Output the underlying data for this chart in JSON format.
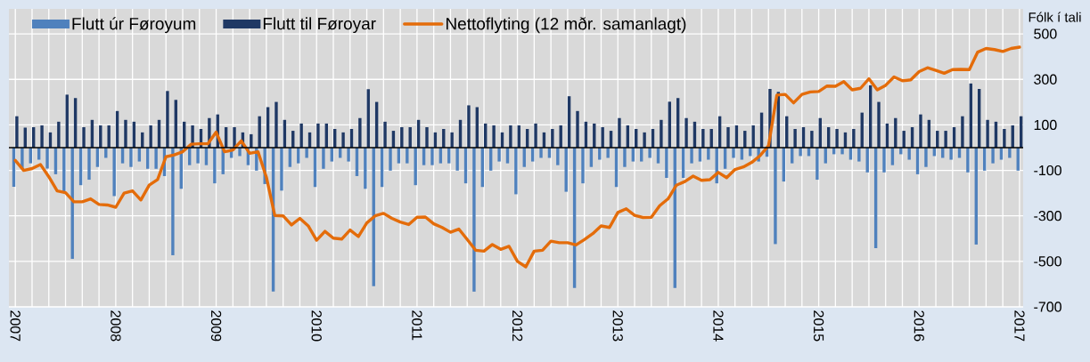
{
  "chart_data": {
    "type": "bar",
    "ylabel": "Fólk í tali",
    "x": [
      "2007-01",
      "2007-02",
      "2007-03",
      "2007-04",
      "2007-05",
      "2007-06",
      "2007-07",
      "2007-08",
      "2007-09",
      "2007-10",
      "2007-11",
      "2007-12",
      "2008-01",
      "2008-02",
      "2008-03",
      "2008-04",
      "2008-05",
      "2008-06",
      "2008-07",
      "2008-08",
      "2008-09",
      "2008-10",
      "2008-11",
      "2008-12",
      "2009-01",
      "2009-02",
      "2009-03",
      "2009-04",
      "2009-05",
      "2009-06",
      "2009-07",
      "2009-08",
      "2009-09",
      "2009-10",
      "2009-11",
      "2009-12",
      "2010-01",
      "2010-02",
      "2010-03",
      "2010-04",
      "2010-05",
      "2010-06",
      "2010-07",
      "2010-08",
      "2010-09",
      "2010-10",
      "2010-11",
      "2010-12",
      "2011-01",
      "2011-02",
      "2011-03",
      "2011-04",
      "2011-05",
      "2011-06",
      "2011-07",
      "2011-08",
      "2011-09",
      "2011-10",
      "2011-11",
      "2011-12",
      "2012-01",
      "2012-02",
      "2012-03",
      "2012-04",
      "2012-05",
      "2012-06",
      "2012-07",
      "2012-08",
      "2012-09",
      "2012-10",
      "2012-11",
      "2012-12",
      "2013-01",
      "2013-02",
      "2013-03",
      "2013-04",
      "2013-05",
      "2013-06",
      "2013-07",
      "2013-08",
      "2013-09",
      "2013-10",
      "2013-11",
      "2013-12",
      "2014-01",
      "2014-02",
      "2014-03",
      "2014-04",
      "2014-05",
      "2014-06",
      "2014-07",
      "2014-08",
      "2014-09",
      "2014-10",
      "2014-11",
      "2014-12",
      "2015-01",
      "2015-02",
      "2015-03",
      "2015-04",
      "2015-05",
      "2015-06",
      "2015-07",
      "2015-08",
      "2015-09",
      "2015-10",
      "2015-11",
      "2015-12",
      "2016-01",
      "2016-02",
      "2016-03",
      "2016-04",
      "2016-05",
      "2016-06",
      "2016-07",
      "2016-08",
      "2016-09",
      "2016-10",
      "2016-11",
      "2016-12",
      "2017-01"
    ],
    "series": [
      {
        "name": "Flutt úr Føroyum",
        "color": "#4f81bd",
        "values": [
          -172,
          -93,
          -69,
          -53,
          -92,
          -117,
          -192,
          -489,
          -165,
          -141,
          -85,
          -45,
          -213,
          -69,
          -85,
          -61,
          -93,
          -93,
          -125,
          -473,
          -181,
          -77,
          -69,
          -77,
          -157,
          -117,
          -45,
          -37,
          -77,
          -101,
          -160,
          -633,
          -189,
          -85,
          -69,
          -45,
          -173,
          -93,
          -61,
          -45,
          -61,
          -125,
          -181,
          -609,
          -173,
          -101,
          -69,
          -69,
          -165,
          -77,
          -77,
          -69,
          -69,
          -101,
          -157,
          -633,
          -173,
          -101,
          -61,
          -69,
          -205,
          -85,
          -61,
          -45,
          -45,
          -77,
          -194,
          -617,
          -157,
          -85,
          -53,
          -45,
          -173,
          -85,
          -61,
          -61,
          -45,
          -69,
          -133,
          -617,
          -133,
          -69,
          -61,
          -53,
          -157,
          -93,
          -45,
          -53,
          -37,
          -61,
          -40,
          -424,
          -149,
          -69,
          -37,
          -37,
          -141,
          -69,
          -29,
          -29,
          -53,
          -61,
          -109,
          -442,
          -109,
          -77,
          -29,
          -53,
          -117,
          -85,
          -37,
          -45,
          -53,
          -45,
          -109,
          -426,
          -101,
          -69,
          -53,
          -45,
          -101
        ]
      },
      {
        "name": "Flutt til Føroyar",
        "color": "#1f3864",
        "values": [
          138,
          88,
          90,
          98,
          67,
          114,
          233,
          218,
          90,
          122,
          98,
          98,
          161,
          122,
          114,
          67,
          98,
          122,
          249,
          210,
          114,
          98,
          82,
          130,
          146,
          90,
          90,
          67,
          59,
          138,
          178,
          201,
          122,
          74,
          106,
          67,
          106,
          106,
          82,
          67,
          82,
          130,
          257,
          201,
          114,
          74,
          90,
          90,
          122,
          90,
          67,
          82,
          67,
          122,
          186,
          178,
          106,
          98,
          67,
          98,
          98,
          82,
          106,
          67,
          82,
          98,
          226,
          161,
          114,
          106,
          90,
          74,
          130,
          98,
          82,
          67,
          82,
          122,
          202,
          218,
          130,
          114,
          82,
          82,
          138,
          90,
          98,
          74,
          98,
          154,
          258,
          245,
          138,
          82,
          90,
          74,
          130,
          90,
          82,
          67,
          82,
          154,
          274,
          201,
          106,
          130,
          74,
          90,
          146,
          122,
          74,
          74,
          90,
          138,
          282,
          258,
          122,
          114,
          82,
          98,
          138
        ]
      },
      {
        "name": "Nettoflyting (12 mðr. samanlagt)",
        "type": "line",
        "color": "#e46c0a",
        "values": [
          -56,
          -100,
          -92,
          -74,
          -128,
          -190,
          -198,
          -238,
          -238,
          -225,
          -250,
          -252,
          -262,
          -200,
          -190,
          -230,
          -165,
          -140,
          -40,
          -32,
          -18,
          15,
          17,
          17,
          68,
          -18,
          -10,
          30,
          -25,
          -18,
          -130,
          -298,
          -300,
          -340,
          -311,
          -344,
          -407,
          -368,
          -398,
          -402,
          -362,
          -391,
          -331,
          -300,
          -289,
          -311,
          -327,
          -338,
          -306,
          -305,
          -335,
          -351,
          -372,
          -358,
          -404,
          -451,
          -455,
          -426,
          -447,
          -434,
          -500,
          -524,
          -455,
          -451,
          -411,
          -418,
          -418,
          -428,
          -404,
          -378,
          -344,
          -351,
          -285,
          -269,
          -298,
          -307,
          -306,
          -255,
          -225,
          -165,
          -149,
          -125,
          -144,
          -141,
          -109,
          -132,
          -96,
          -85,
          -65,
          -35,
          8,
          231,
          234,
          197,
          234,
          245,
          247,
          271,
          270,
          290,
          254,
          261,
          303,
          254,
          274,
          311,
          294,
          298,
          334,
          351,
          340,
          327,
          343,
          344,
          343,
          420,
          436,
          431,
          423,
          436,
          442
        ]
      }
    ],
    "xlim": [
      "2006-12-08",
      "2017-01-14"
    ],
    "xticks": [
      "2007",
      {
        "value": "2007-03",
        "label": null
      },
      {
        "value": "2007-05",
        "label": null
      },
      {
        "value": "2007-07",
        "label": null
      },
      {
        "value": "2007-09",
        "label": null
      },
      {
        "value": "2007-11",
        "label": null
      },
      "2008",
      {
        "value": "2008-03",
        "label": null
      },
      {
        "value": "2008-05",
        "label": null
      },
      {
        "value": "2008-07",
        "label": null
      },
      {
        "value": "2008-09",
        "label": null
      },
      {
        "value": "2008-11",
        "label": null
      },
      "2009",
      {
        "value": "2009-03",
        "label": null
      },
      {
        "value": "2009-05",
        "label": null
      },
      {
        "value": "2009-07",
        "label": null
      },
      {
        "value": "2009-09",
        "label": null
      },
      {
        "value": "2009-11",
        "label": null
      },
      "2010",
      {
        "value": "2010-03",
        "label": null
      },
      {
        "value": "2010-05",
        "label": null
      },
      {
        "value": "2010-07",
        "label": null
      },
      {
        "value": "2010-09",
        "label": null
      },
      {
        "value": "2010-11",
        "label": null
      },
      "2011",
      {
        "value": "2011-03",
        "label": null
      },
      {
        "value": "2011-05",
        "label": null
      },
      {
        "value": "2011-07",
        "label": null
      },
      {
        "value": "2011-09",
        "label": null
      },
      {
        "value": "2011-11",
        "label": null
      },
      "2012",
      {
        "value": "2012-03",
        "label": null
      },
      {
        "value": "2012-05",
        "label": null
      },
      {
        "value": "2012-07",
        "label": null
      },
      {
        "value": "2012-09",
        "label": null
      },
      {
        "value": "2012-11",
        "label": null
      },
      "2013",
      {
        "value": "2013-03",
        "label": null
      },
      {
        "value": "2013-05",
        "label": null
      },
      {
        "value": "2013-07",
        "label": null
      },
      {
        "value": "2013-09",
        "label": null
      },
      {
        "value": "2013-11",
        "label": null
      },
      "2014",
      {
        "value": "2014-03",
        "label": null
      },
      {
        "value": "2014-05",
        "label": null
      },
      {
        "value": "2014-07",
        "label": null
      },
      {
        "value": "2014-09",
        "label": null
      },
      {
        "value": "2014-11",
        "label": null
      },
      "2015",
      {
        "value": "2015-03",
        "label": null
      },
      {
        "value": "2015-05",
        "label": null
      },
      {
        "value": "2015-07",
        "label": null
      },
      {
        "value": "2015-09",
        "label": null
      },
      {
        "value": "2015-11",
        "label": null
      },
      "2016",
      {
        "value": "2016-03",
        "label": null
      },
      {
        "value": "2016-05",
        "label": null
      },
      {
        "value": "2016-07",
        "label": null
      },
      {
        "value": "2016-09",
        "label": null
      },
      {
        "value": "2016-11",
        "label": null
      },
      "2017"
    ],
    "ylim": [
      -700,
      610
    ],
    "yticks": [
      500,
      300,
      100,
      -100,
      -300,
      -500,
      -700
    ],
    "grid": true,
    "legend": "top"
  }
}
